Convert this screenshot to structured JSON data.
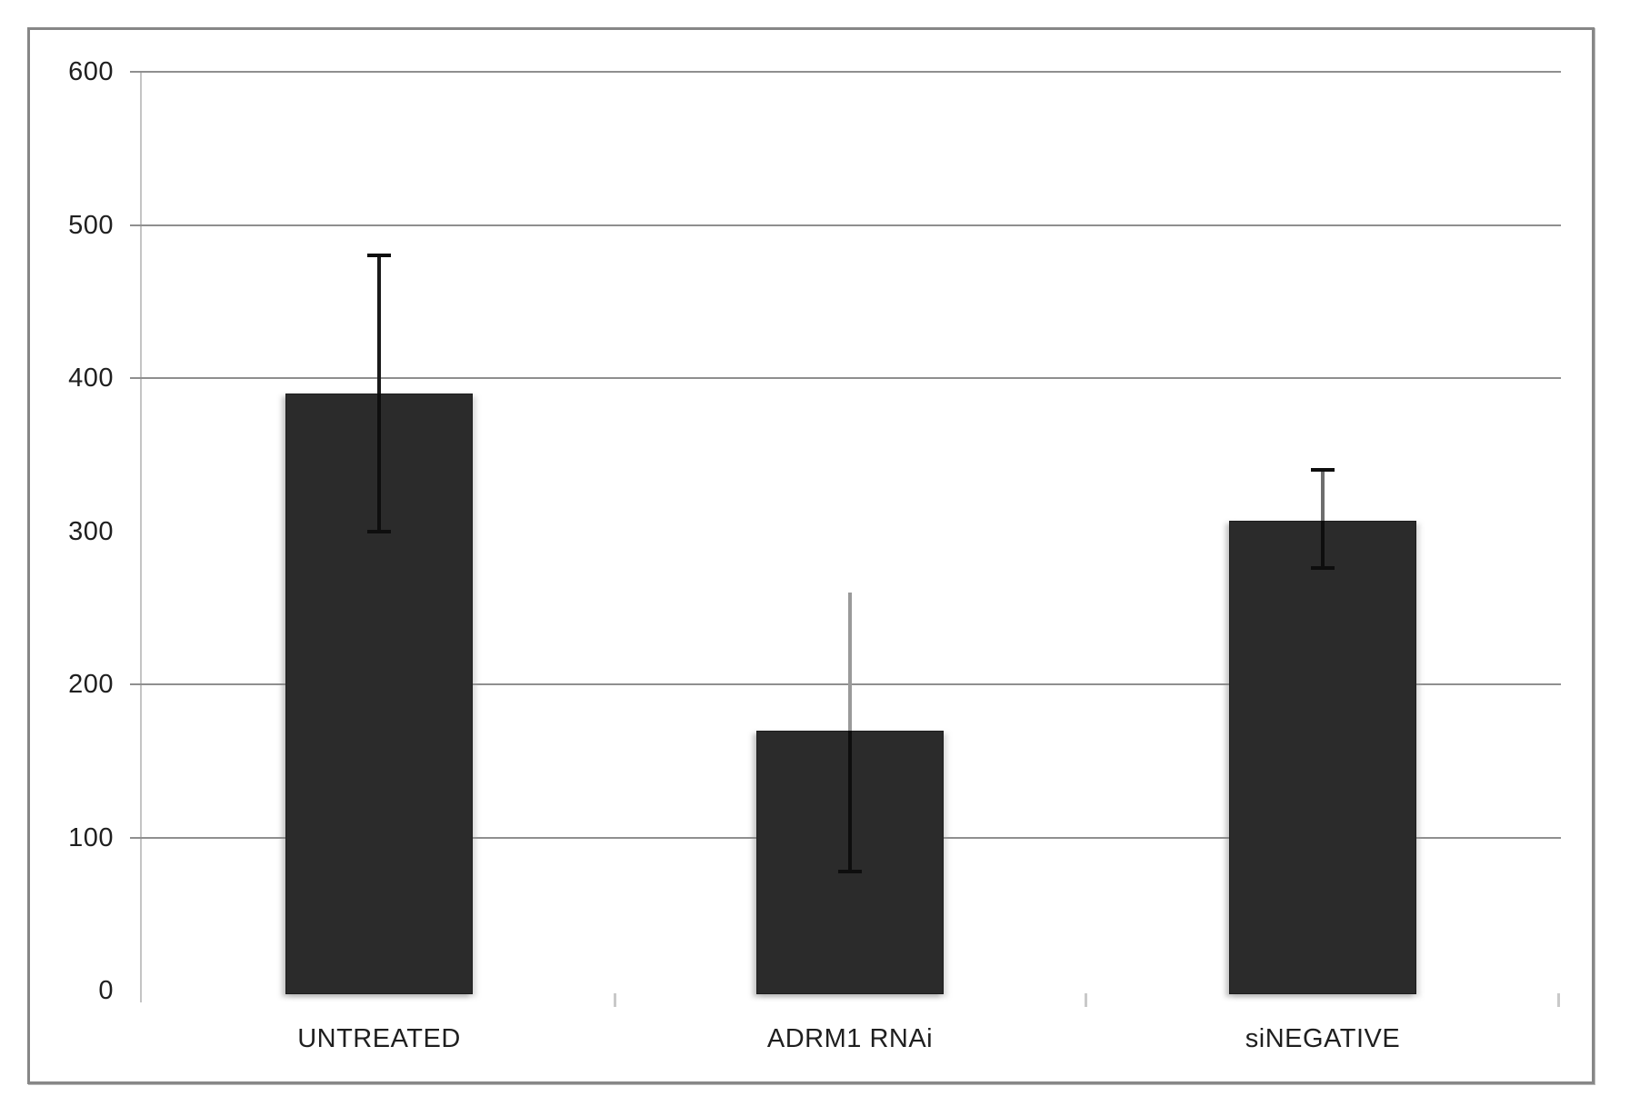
{
  "window": {
    "background_color": "#ffffff",
    "frame_border_color": "#878787"
  },
  "chart_data": {
    "type": "bar",
    "title": "",
    "xlabel": "",
    "ylabel": "",
    "categories": [
      "UNTREATED",
      "ADRM1 RNAi",
      "siNEGATIVE"
    ],
    "values": [
      390,
      170,
      307
    ],
    "error_bars": [
      {
        "low": 300,
        "high": 480,
        "top_cap": true,
        "bottom_cap": true,
        "line_color_above": "#1a1a1a"
      },
      {
        "low": 78,
        "high": 260,
        "top_cap": false,
        "bottom_cap": true,
        "line_color_above": "#9a9a9a"
      },
      {
        "low": 276,
        "high": 340,
        "top_cap": true,
        "bottom_cap": true,
        "line_color_above": "#6e6e6e"
      }
    ],
    "ylim": [
      0,
      600
    ],
    "yticks": [
      0,
      100,
      200,
      300,
      400,
      500,
      600
    ],
    "gridline_ticks": [
      100,
      200,
      400,
      500,
      600
    ],
    "grid": "horizontal",
    "legend": "none",
    "bar_color": "#2b2b2b",
    "error_inner_color": "#0e0e0e",
    "gridline_color": "#8f8f8f",
    "axis_line_color": "#c4c4c4",
    "x_tick_color": "#c9c9c9",
    "label_color": "#1f1f1f"
  }
}
